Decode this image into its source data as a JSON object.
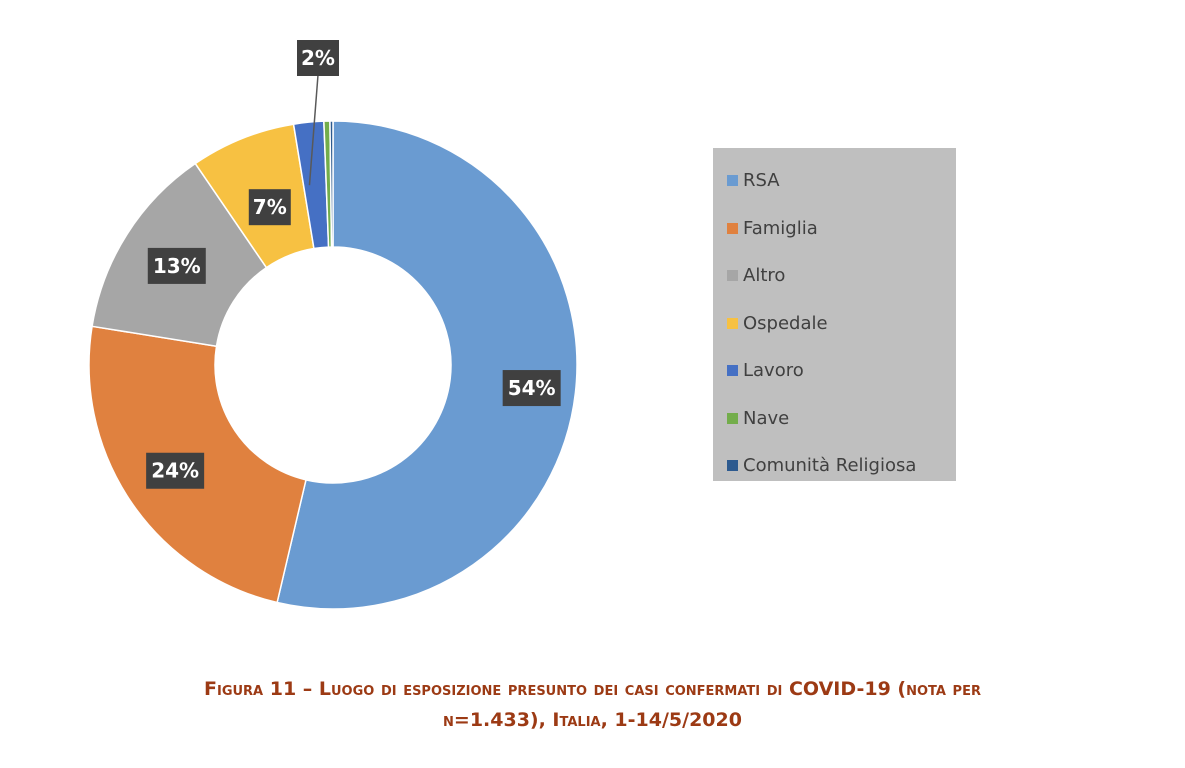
{
  "chart_data": {
    "type": "pie",
    "subtype": "donut",
    "title": "",
    "categories": [
      "RSA",
      "Famiglia",
      "Altro",
      "Ospedale",
      "Lavoro",
      "Nave",
      "Comunità Religiosa"
    ],
    "values": [
      54,
      24,
      13,
      7,
      2,
      0.4,
      0.2
    ],
    "data_labels": [
      "54%",
      "24%",
      "13%",
      "7%",
      "2%",
      "",
      ""
    ],
    "colors": [
      "#6a9bd1",
      "#e0813f",
      "#a6a6a6",
      "#f7c142",
      "#4570c4",
      "#73ad4b",
      "#2d5a8f"
    ],
    "legend_position": "right",
    "legend_background": "#bfbfbf"
  },
  "caption": {
    "line1": "Figura 11 – Luogo di esposizione presunto dei casi confermati di COVID-19 (nota per",
    "line2": "n=1.433), Italia, 1-14/5/2020"
  }
}
